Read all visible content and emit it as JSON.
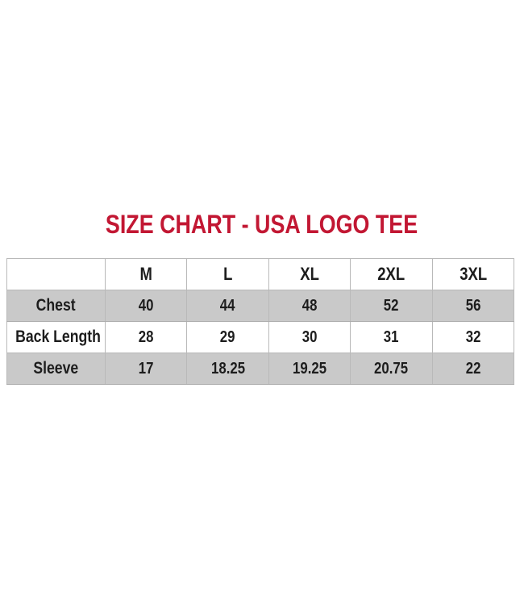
{
  "title": {
    "text": "SIZE CHART - USA LOGO TEE",
    "color": "#C21733"
  },
  "chart_data": {
    "type": "table",
    "title": "SIZE CHART - USA LOGO TEE",
    "columns": [
      "",
      "M",
      "L",
      "XL",
      "2XL",
      "3XL"
    ],
    "rows": [
      {
        "label": "Chest",
        "values": [
          "40",
          "44",
          "48",
          "52",
          "56"
        ]
      },
      {
        "label": "Back Length",
        "values": [
          "28",
          "29",
          "30",
          "31",
          "32"
        ]
      },
      {
        "label": "Sleeve",
        "values": [
          "17",
          "18.25",
          "19.25",
          "20.75",
          "22"
        ]
      }
    ],
    "striped_rows": [
      "Chest",
      "Sleeve"
    ],
    "striped_row_color": "#C9C9C9",
    "grid": true,
    "text_color": "#1D1D1D"
  }
}
